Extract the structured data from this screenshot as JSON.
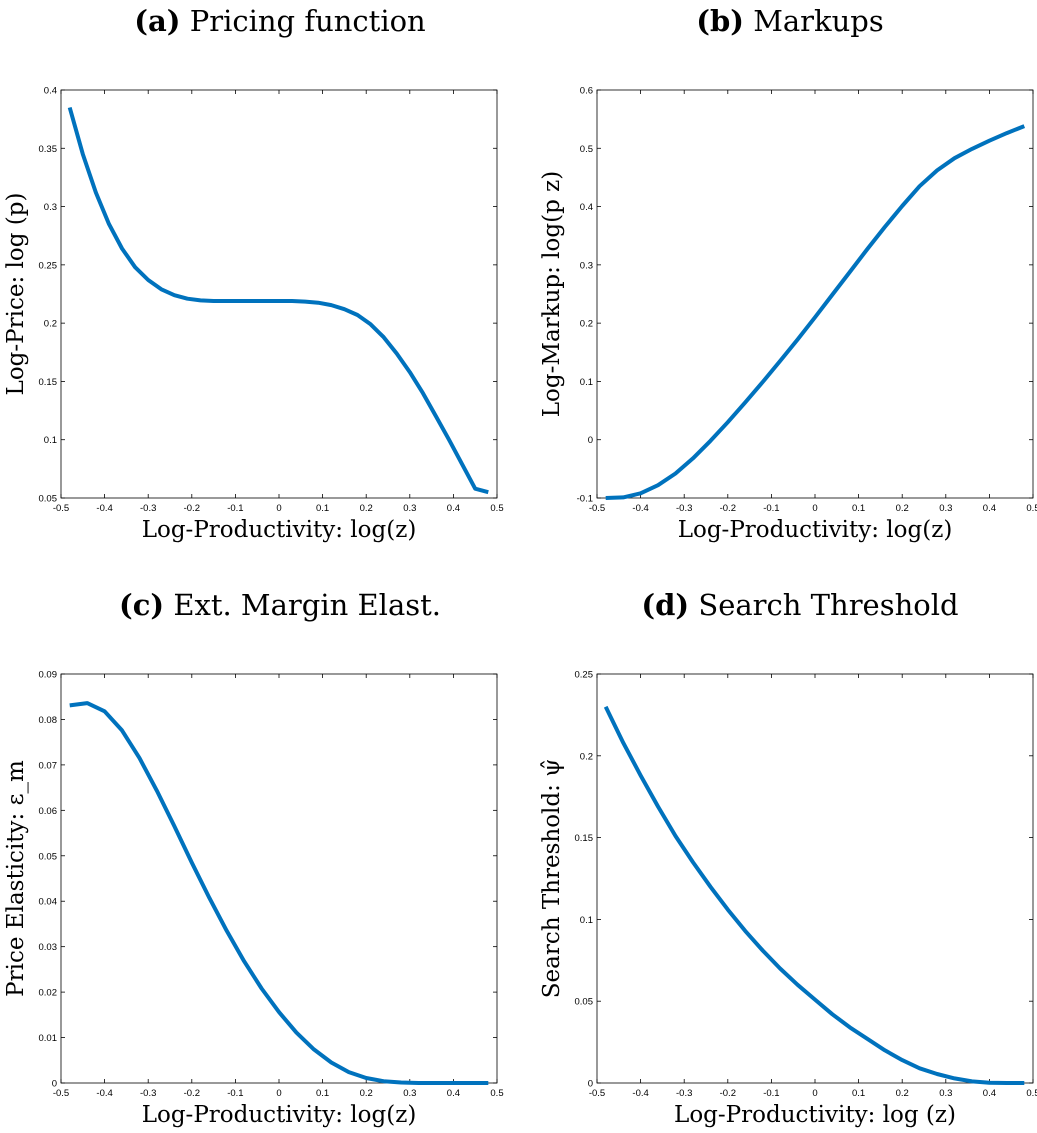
{
  "panels": [
    {
      "tag": "(a)",
      "title": "Pricing function"
    },
    {
      "tag": "(b)",
      "title": "Markups"
    },
    {
      "tag": "(c)",
      "title": "Ext. Margin Elast."
    },
    {
      "tag": "(d)",
      "title": "Search Threshold"
    }
  ],
  "colors": {
    "line": "#0072BD",
    "axis": "#000000"
  },
  "chart_data": [
    {
      "type": "line",
      "title": "",
      "xlabel": "Log-Productivity: log(z)",
      "ylabel": "Log-Price: log (p)",
      "xlim": [
        -0.5,
        0.5
      ],
      "ylim": [
        0.05,
        0.4
      ],
      "xticks": [
        -0.5,
        -0.4,
        -0.3,
        -0.2,
        -0.1,
        0,
        0.1,
        0.2,
        0.3,
        0.4,
        0.5
      ],
      "xticklabels": [
        "-0.5",
        "-0.4",
        "-0.3",
        "-0.2",
        "-0.1",
        "0",
        "0.1",
        "0.2",
        "0.3",
        "0.4",
        "0.5"
      ],
      "yticks": [
        0.05,
        0.1,
        0.15,
        0.2,
        0.25,
        0.3,
        0.35,
        0.4
      ],
      "yticklabels": [
        "0.05",
        "0.1",
        "0.15",
        "0.2",
        "0.25",
        "0.3",
        "0.35",
        "0.4"
      ],
      "grid": false,
      "series": [
        {
          "x": [
            -0.48,
            -0.45,
            -0.42,
            -0.39,
            -0.36,
            -0.33,
            -0.3,
            -0.27,
            -0.24,
            -0.21,
            -0.18,
            -0.15,
            -0.12,
            -0.09,
            -0.06,
            -0.03,
            0.0,
            0.03,
            0.06,
            0.09,
            0.12,
            0.15,
            0.18,
            0.21,
            0.24,
            0.27,
            0.3,
            0.33,
            0.36,
            0.39,
            0.42,
            0.45,
            0.48
          ],
          "y": [
            0.385,
            0.345,
            0.312,
            0.285,
            0.264,
            0.248,
            0.237,
            0.229,
            0.224,
            0.221,
            0.2195,
            0.219,
            0.219,
            0.219,
            0.219,
            0.219,
            0.219,
            0.219,
            0.2185,
            0.2175,
            0.2155,
            0.212,
            0.207,
            0.199,
            0.188,
            0.174,
            0.158,
            0.14,
            0.12,
            0.1,
            0.079,
            0.058,
            0.055
          ]
        }
      ]
    },
    {
      "type": "line",
      "title": "",
      "xlabel": "Log-Productivity: log(z)",
      "ylabel": "Log-Markup: log(p z)",
      "xlim": [
        -0.5,
        0.5
      ],
      "ylim": [
        -0.1,
        0.6
      ],
      "xticks": [
        -0.5,
        -0.4,
        -0.3,
        -0.2,
        -0.1,
        0,
        0.1,
        0.2,
        0.3,
        0.4,
        0.5
      ],
      "xticklabels": [
        "-0.5",
        "-0.4",
        "-0.3",
        "-0.2",
        "-0.1",
        "0",
        "0.1",
        "0.2",
        "0.3",
        "0.4",
        "0.5"
      ],
      "yticks": [
        -0.1,
        0,
        0.1,
        0.2,
        0.3,
        0.4,
        0.5,
        0.6
      ],
      "yticklabels": [
        "-0.1",
        "0",
        "0.1",
        "0.2",
        "0.3",
        "0.4",
        "0.5",
        "0.6"
      ],
      "grid": false,
      "series": [
        {
          "x": [
            -0.48,
            -0.44,
            -0.4,
            -0.36,
            -0.32,
            -0.28,
            -0.24,
            -0.2,
            -0.16,
            -0.12,
            -0.08,
            -0.04,
            0.0,
            0.04,
            0.08,
            0.12,
            0.16,
            0.2,
            0.24,
            0.28,
            0.32,
            0.36,
            0.4,
            0.44,
            0.48
          ],
          "y": [
            -0.1,
            -0.099,
            -0.092,
            -0.078,
            -0.058,
            -0.032,
            -0.002,
            0.03,
            0.064,
            0.099,
            0.135,
            0.172,
            0.21,
            0.249,
            0.288,
            0.327,
            0.365,
            0.401,
            0.435,
            0.462,
            0.483,
            0.499,
            0.513,
            0.526,
            0.538
          ]
        }
      ]
    },
    {
      "type": "line",
      "title": "",
      "xlabel": "Log-Productivity: log(z)",
      "ylabel": "Price Elasticity: ε_m",
      "xlim": [
        -0.5,
        0.5
      ],
      "ylim": [
        0,
        0.09
      ],
      "xticks": [
        -0.5,
        -0.4,
        -0.3,
        -0.2,
        -0.1,
        0,
        0.1,
        0.2,
        0.3,
        0.4,
        0.5
      ],
      "xticklabels": [
        "-0.5",
        "-0.4",
        "-0.3",
        "-0.2",
        "-0.1",
        "0",
        "0.1",
        "0.2",
        "0.3",
        "0.4",
        "0.5"
      ],
      "yticks": [
        0,
        0.01,
        0.02,
        0.03,
        0.04,
        0.05,
        0.06,
        0.07,
        0.08,
        0.09
      ],
      "yticklabels": [
        "0",
        "0.01",
        "0.02",
        "0.03",
        "0.04",
        "0.05",
        "0.06",
        "0.07",
        "0.08",
        "0.09"
      ],
      "grid": false,
      "series": [
        {
          "x": [
            -0.48,
            -0.44,
            -0.4,
            -0.36,
            -0.32,
            -0.28,
            -0.24,
            -0.2,
            -0.16,
            -0.12,
            -0.08,
            -0.04,
            0.0,
            0.04,
            0.08,
            0.12,
            0.16,
            0.2,
            0.24,
            0.28,
            0.32,
            0.36,
            0.4,
            0.44,
            0.48
          ],
          "y": [
            0.0831,
            0.0836,
            0.0818,
            0.0776,
            0.0715,
            0.0643,
            0.0565,
            0.0485,
            0.0408,
            0.0335,
            0.0268,
            0.0208,
            0.0156,
            0.0111,
            0.0074,
            0.0045,
            0.0024,
            0.0011,
            0.0004,
            0.0001,
            0.0,
            0.0,
            0.0,
            0.0,
            0.0
          ]
        }
      ]
    },
    {
      "type": "line",
      "title": "",
      "xlabel": "Log-Productivity: log (z)",
      "ylabel": "Search Threshold: ψ̂",
      "xlim": [
        -0.5,
        0.5
      ],
      "ylim": [
        0,
        0.25
      ],
      "xticks": [
        -0.5,
        -0.4,
        -0.3,
        -0.2,
        -0.1,
        0,
        0.1,
        0.2,
        0.3,
        0.4,
        0.5
      ],
      "xticklabels": [
        "-0.5",
        "-0.4",
        "-0.3",
        "-0.2",
        "-0.1",
        "0",
        "0.1",
        "0.2",
        "0.3",
        "0.4",
        "0.5"
      ],
      "yticks": [
        0,
        0.05,
        0.1,
        0.15,
        0.2,
        0.25
      ],
      "yticklabels": [
        "0",
        "0.05",
        "0.1",
        "0.15",
        "0.2",
        "0.25"
      ],
      "grid": false,
      "series": [
        {
          "x": [
            -0.48,
            -0.44,
            -0.4,
            -0.36,
            -0.32,
            -0.28,
            -0.24,
            -0.2,
            -0.16,
            -0.12,
            -0.08,
            -0.04,
            0.0,
            0.04,
            0.08,
            0.12,
            0.16,
            0.2,
            0.24,
            0.28,
            0.32,
            0.36,
            0.4,
            0.44,
            0.48
          ],
          "y": [
            0.23,
            0.208,
            0.188,
            0.169,
            0.151,
            0.135,
            0.12,
            0.106,
            0.093,
            0.081,
            0.07,
            0.06,
            0.051,
            0.042,
            0.034,
            0.027,
            0.02,
            0.014,
            0.009,
            0.0055,
            0.0028,
            0.001,
            0.0002,
            0.0,
            0.0
          ]
        }
      ]
    }
  ]
}
